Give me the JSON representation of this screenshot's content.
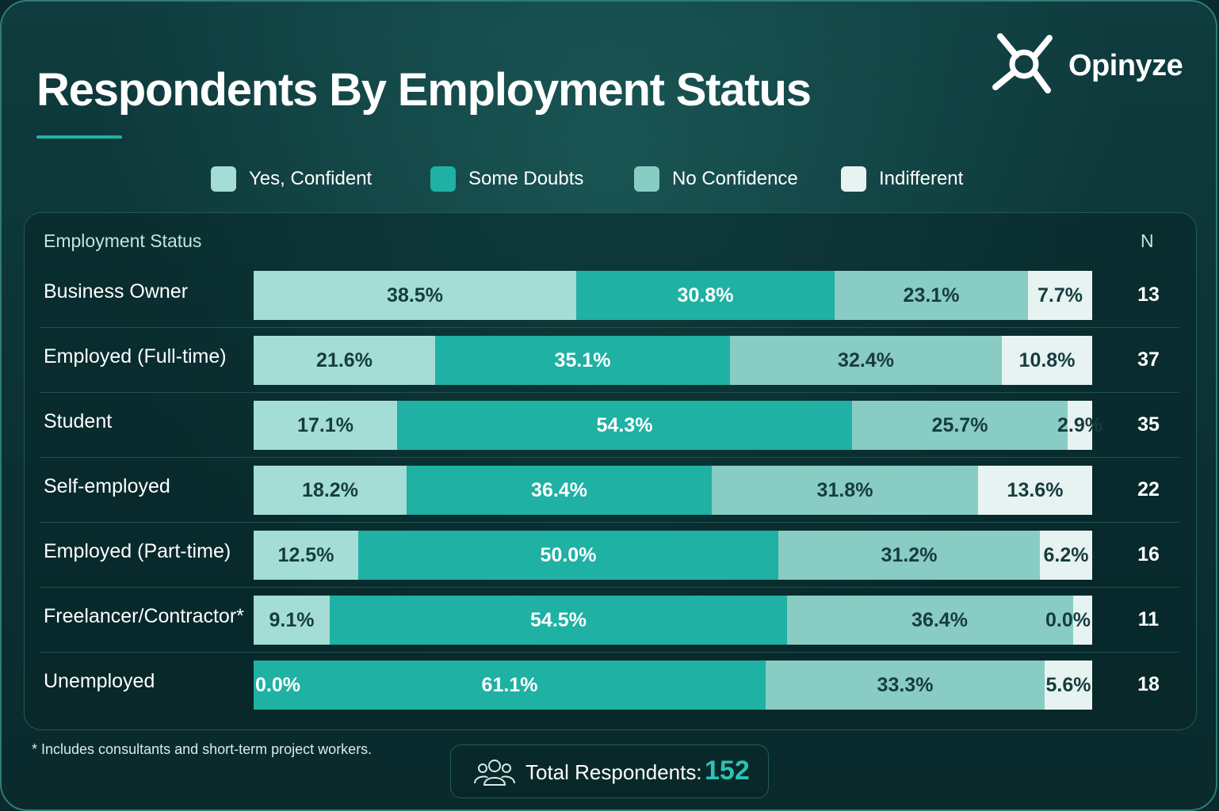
{
  "header": {
    "title": "Respondents By Employment Status",
    "brand_name": "Opinyze"
  },
  "table": {
    "category_header": "Employment Status",
    "n_header": "N"
  },
  "footnote": "* Includes consultants and short-term project workers.",
  "total": {
    "label": "Total Respondents:",
    "value": "152"
  },
  "colors": {
    "yes_confident": "#a3ddd6",
    "some_doubts": "#1fb1a3",
    "no_confidence": "#88ccc4",
    "indifferent": "#e6f3f1",
    "dark_text": "#163c3e",
    "accent": "#2cc3b3"
  },
  "chart_data": {
    "type": "bar",
    "stacked": true,
    "orientation": "horizontal",
    "unit": "%",
    "title": "Respondents By Employment Status",
    "categories": [
      "Business Owner",
      "Employed (Full-time)",
      "Student",
      "Self-employed",
      "Employed (Part-time)",
      "Freelancer/Contractor*",
      "Unemployed"
    ],
    "series": [
      {
        "name": "Yes, Confident",
        "values": [
          38.5,
          21.6,
          17.1,
          18.2,
          12.5,
          9.1,
          0.0
        ],
        "labels": [
          "38.5%",
          "21.6%",
          "17.1%",
          "18.2%",
          "12.5%",
          "9.1%",
          "0.0%"
        ]
      },
      {
        "name": "Some Doubts",
        "values": [
          30.8,
          35.1,
          54.3,
          36.4,
          50.0,
          54.5,
          61.1
        ],
        "labels": [
          "30.8%",
          "35.1%",
          "54.3%",
          "36.4%",
          "50.0%",
          "54.5%",
          "61.1%"
        ]
      },
      {
        "name": "No Confidence",
        "values": [
          23.1,
          32.4,
          25.7,
          31.8,
          31.2,
          36.4,
          33.3
        ],
        "labels": [
          "23.1%",
          "32.4%",
          "25.7%",
          "31.8%",
          "31.2%",
          "36.4%",
          "33.3%"
        ]
      },
      {
        "name": "Indifferent",
        "values": [
          7.7,
          10.8,
          2.9,
          13.6,
          6.2,
          0.0,
          5.6
        ],
        "labels": [
          "7.7%",
          "10.8%",
          "2.9%",
          "13.6%",
          "6.2%",
          "0.0%",
          "5.6%"
        ]
      }
    ],
    "n": [
      "13",
      "37",
      "35",
      "22",
      "16",
      "11",
      "18"
    ],
    "xlim": [
      0,
      100
    ],
    "legend_position": "top-center",
    "grid": false
  }
}
